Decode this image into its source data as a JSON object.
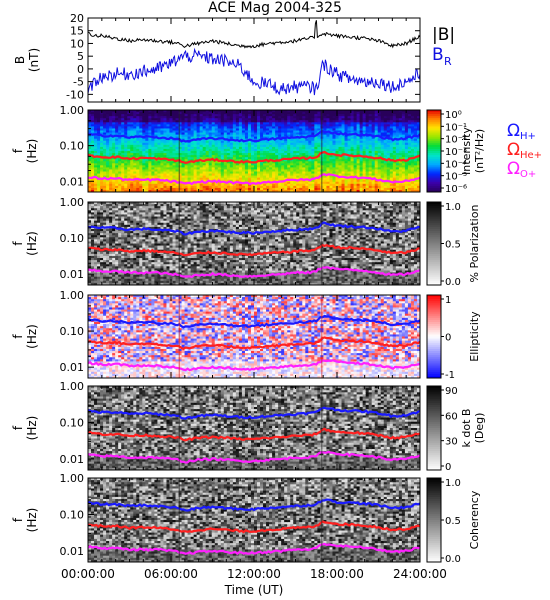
{
  "title": "ACE Mag 2004-325",
  "x_axis": {
    "label": "Time (UT)",
    "ticks": [
      "00:00:00",
      "06:00:00",
      "12:00:00",
      "18:00:00",
      "24:00:00"
    ],
    "range_hours": [
      0,
      24
    ]
  },
  "panels": [
    {
      "id": "b",
      "ylabel_line1": "B",
      "ylabel_line2": "(nT)",
      "yticks": [
        "20",
        "15",
        "10",
        "5",
        "0",
        "-5",
        "-10"
      ],
      "yrange": [
        -13,
        20
      ],
      "legend": [
        {
          "label": "|B|",
          "color": "#000000"
        },
        {
          "label": "B",
          "sub": "R",
          "color": "#1010e0"
        }
      ]
    },
    {
      "id": "intensity",
      "ylabel_line1": "f",
      "ylabel_line2": "(Hz)",
      "yticks": [
        "1.00",
        "0.10",
        "0.01"
      ],
      "cbar_title_line1": "Intensity",
      "cbar_title_line2": "(nT²/Hz)",
      "cbar_ticks": [
        "10⁰",
        "10⁻¹",
        "10⁻²",
        "10⁻³",
        "10⁻⁴",
        "10⁻⁵",
        "10⁻⁶"
      ],
      "colormap": "rainbow",
      "gyro_labels": [
        {
          "text": "Ω",
          "sub": "H+",
          "color": "#1a1aff"
        },
        {
          "text": "Ω",
          "sub": "He+",
          "color": "#ff2020"
        },
        {
          "text": "Ω",
          "sub": "O+",
          "color": "#ff20ff"
        }
      ]
    },
    {
      "id": "polarization",
      "ylabel_line1": "f",
      "ylabel_line2": "(Hz)",
      "yticks": [
        "1.00",
        "0.10",
        "0.01"
      ],
      "cbar_title_line1": "% Polarization",
      "cbar_title_line2": "",
      "cbar_ticks": [
        "1.0",
        "0.5",
        "0.0"
      ],
      "colormap": "gray"
    },
    {
      "id": "ellipticity",
      "ylabel_line1": "f",
      "ylabel_line2": "(Hz)",
      "yticks": [
        "1.00",
        "0.10",
        "0.01"
      ],
      "cbar_title_line1": "Ellipticity",
      "cbar_title_line2": "",
      "cbar_ticks": [
        "1",
        "0",
        "-1"
      ],
      "colormap": "bwr"
    },
    {
      "id": "kdotb",
      "ylabel_line1": "f",
      "ylabel_line2": "(Hz)",
      "yticks": [
        "1.00",
        "0.10",
        "0.01"
      ],
      "cbar_title_line1": "k dot B",
      "cbar_title_line2": "(Deg)",
      "cbar_ticks": [
        "90",
        "60",
        "30",
        "0"
      ],
      "colormap": "gray"
    },
    {
      "id": "coherency",
      "ylabel_line1": "f",
      "ylabel_line2": "(Hz)",
      "yticks": [
        "1.00",
        "0.10",
        "0.01"
      ],
      "cbar_title_line1": "Coherency",
      "cbar_title_line2": "",
      "cbar_ticks": [
        "1.0",
        "0.5",
        "0.0"
      ],
      "colormap": "gray"
    }
  ],
  "chart_data": {
    "type": "line",
    "title": "ACE Mag 2004-325",
    "xlabel": "Time (UT)",
    "xlim_hours": [
      0,
      24
    ],
    "magnetic_field": {
      "ylabel": "B (nT)",
      "ylim": [
        -13,
        20
      ],
      "x_hours": [
        0,
        0.5,
        1,
        2,
        3,
        4,
        5,
        6,
        6.5,
        7,
        8,
        9,
        10,
        11,
        12,
        13,
        14,
        15,
        16,
        16.5,
        17,
        17.5,
        18,
        19,
        20,
        21,
        22,
        23,
        24
      ],
      "series": [
        {
          "name": "|B|",
          "color": "#000000",
          "values": [
            14,
            13,
            13,
            12,
            11,
            11.5,
            11,
            10.5,
            10,
            9,
            10,
            11,
            10,
            9,
            9,
            10,
            10.5,
            11,
            12,
            12.5,
            14,
            13.5,
            13,
            12.5,
            12,
            11,
            9,
            10,
            13
          ]
        },
        {
          "name": "B",
          "label_sub": "R",
          "color": "#1010e0",
          "values": [
            -10,
            -5,
            -3,
            -2,
            -2,
            -1,
            0,
            2,
            4,
            5,
            5,
            4,
            3,
            1,
            -5,
            -6,
            -8,
            -7,
            -7,
            -8,
            2,
            0,
            -2,
            -4,
            -5,
            -5,
            -7,
            -5,
            -2
          ]
        }
      ]
    },
    "gyrofrequency_hz": {
      "x_hours": [
        0,
        1,
        2,
        3,
        4,
        5,
        6,
        6.5,
        7,
        8,
        9,
        10,
        11,
        12,
        13,
        14,
        15,
        16,
        16.5,
        17,
        18,
        19,
        20,
        21,
        22,
        23,
        24
      ],
      "series": [
        {
          "name": "Ω H+",
          "color": "#1a1aff",
          "values": [
            0.21,
            0.19,
            0.19,
            0.17,
            0.18,
            0.17,
            0.16,
            0.15,
            0.13,
            0.15,
            0.16,
            0.15,
            0.14,
            0.14,
            0.15,
            0.16,
            0.17,
            0.18,
            0.19,
            0.26,
            0.22,
            0.21,
            0.2,
            0.18,
            0.15,
            0.16,
            0.2
          ]
        },
        {
          "name": "Ω He+",
          "color": "#ff2020",
          "values": [
            0.053,
            0.048,
            0.048,
            0.043,
            0.045,
            0.043,
            0.04,
            0.038,
            0.033,
            0.038,
            0.04,
            0.038,
            0.035,
            0.035,
            0.038,
            0.04,
            0.043,
            0.045,
            0.048,
            0.065,
            0.055,
            0.053,
            0.05,
            0.045,
            0.038,
            0.04,
            0.05
          ]
        },
        {
          "name": "Ω O+",
          "color": "#ff20ff",
          "values": [
            0.013,
            0.012,
            0.012,
            0.011,
            0.011,
            0.011,
            0.01,
            0.0095,
            0.0083,
            0.0095,
            0.01,
            0.0095,
            0.0088,
            0.0088,
            0.0095,
            0.01,
            0.011,
            0.011,
            0.012,
            0.016,
            0.014,
            0.013,
            0.0125,
            0.011,
            0.0095,
            0.01,
            0.0125
          ]
        }
      ]
    },
    "spectrogram_ylim_hz": [
      0.005,
      1.0
    ],
    "spectrogram_yscale": "log"
  }
}
